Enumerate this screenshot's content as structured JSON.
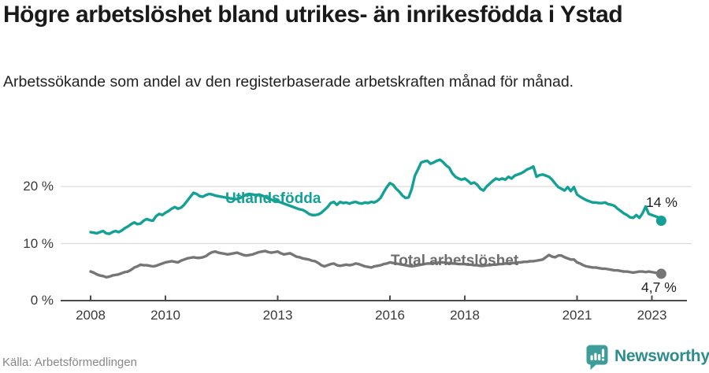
{
  "header": {
    "title": "Högre arbetslöshet bland utrikes- än inrikesfödda i Ystad",
    "subtitle": "Arbetssökande som andel av den registerbaserade arbetskraften månad för månad."
  },
  "footer": {
    "source": "Källa: Arbetsförmedlingen",
    "brand": "Newsworthy"
  },
  "chart_data": {
    "type": "line",
    "title": "Högre arbetslöshet bland utrikes- än inrikesfödda i Ystad",
    "subtitle": "Arbetssökande som andel av den registerbaserade arbetskraften månad för månad.",
    "x_start": 2008,
    "x_step_months": 1,
    "x_end_approx": 2023.25,
    "x_axis": {
      "ticks": [
        2008,
        2010,
        2013,
        2016,
        2018,
        2021,
        2023
      ],
      "tick_labels": [
        "2008",
        "2010",
        "2013",
        "2016",
        "2018",
        "2021",
        "2023"
      ]
    },
    "y_axis": {
      "ticks": [
        0,
        10,
        20
      ],
      "tick_labels": [
        "0 %",
        "10 %",
        "20 %"
      ],
      "range": [
        0,
        26.5
      ],
      "grid": true
    },
    "colors": {
      "grid": "#dcdcdc",
      "axis": "#4a4a4a",
      "accent_teal": "#14a094",
      "line_gray": "#767676"
    },
    "legend_position": "inline-labels",
    "series": [
      {
        "name": "Utlandsfödda",
        "color": "#14a094",
        "end_label": "14 %",
        "end_value": 14,
        "values": [
          12.0,
          11.9,
          11.8,
          12.0,
          12.2,
          11.8,
          11.7,
          12.0,
          12.2,
          12.0,
          12.3,
          12.7,
          13.0,
          13.4,
          13.7,
          13.4,
          13.5,
          14.0,
          14.3,
          14.1,
          14.0,
          14.8,
          15.2,
          15.0,
          15.4,
          15.7,
          16.1,
          16.4,
          16.1,
          16.3,
          16.8,
          17.5,
          18.2,
          18.9,
          18.7,
          18.3,
          18.2,
          18.5,
          18.7,
          18.6,
          18.4,
          18.3,
          18.2,
          18.1,
          18.0,
          17.9,
          17.8,
          17.8,
          18.0,
          18.3,
          18.6,
          18.7,
          18.6,
          18.5,
          18.6,
          18.4,
          18.2,
          17.9,
          17.7,
          17.5,
          17.4,
          17.2,
          17.0,
          16.8,
          16.6,
          16.4,
          16.2,
          16.0,
          15.9,
          15.6,
          15.2,
          15.0,
          15.0,
          15.1,
          15.4,
          15.9,
          16.4,
          17.1,
          17.3,
          16.8,
          17.3,
          17.1,
          17.2,
          17.0,
          17.2,
          17.3,
          17.1,
          17.0,
          17.2,
          17.1,
          17.3,
          17.2,
          17.5,
          18.0,
          19.0,
          19.9,
          20.6,
          20.3,
          19.6,
          19.1,
          18.4,
          18.0,
          18.1,
          19.6,
          21.9,
          23.0,
          24.2,
          24.4,
          24.5,
          24.0,
          24.2,
          24.5,
          24.7,
          24.3,
          23.7,
          23.3,
          22.3,
          21.7,
          21.4,
          21.2,
          21.4,
          21.0,
          20.5,
          20.7,
          20.3,
          19.6,
          19.3,
          20.0,
          20.5,
          21.0,
          21.4,
          21.2,
          21.4,
          21.2,
          21.7,
          21.4,
          21.9,
          22.1,
          22.3,
          22.6,
          23.0,
          23.2,
          23.5,
          21.7,
          22.0,
          22.1,
          21.9,
          21.7,
          21.2,
          20.5,
          19.9,
          19.6,
          19.3,
          19.9,
          19.2,
          19.9,
          18.6,
          18.2,
          17.9,
          17.6,
          17.4,
          17.2,
          17.2,
          17.1,
          17.1,
          17.2,
          16.9,
          16.8,
          16.6,
          16.1,
          15.7,
          15.3,
          15.0,
          14.6,
          14.5,
          15.0,
          14.5,
          15.3,
          16.5,
          15.2,
          15.0,
          14.8,
          14.6,
          14.0
        ]
      },
      {
        "name": "Total arbetslöshet",
        "color": "#767676",
        "end_label": "4,7 %",
        "end_value": 4.7,
        "values": [
          5.1,
          4.9,
          4.6,
          4.4,
          4.3,
          4.1,
          4.2,
          4.4,
          4.5,
          4.6,
          4.8,
          5.0,
          5.1,
          5.4,
          5.8,
          6.0,
          6.3,
          6.2,
          6.2,
          6.1,
          6.0,
          6.1,
          6.3,
          6.5,
          6.7,
          6.8,
          6.9,
          6.8,
          6.7,
          7.0,
          7.2,
          7.4,
          7.5,
          7.6,
          7.5,
          7.5,
          7.6,
          7.8,
          8.2,
          8.5,
          8.6,
          8.4,
          8.3,
          8.2,
          8.1,
          8.2,
          8.3,
          8.4,
          8.2,
          8.0,
          7.9,
          8.0,
          8.1,
          8.3,
          8.5,
          8.6,
          8.7,
          8.5,
          8.4,
          8.5,
          8.6,
          8.3,
          8.1,
          8.2,
          8.3,
          8.0,
          7.7,
          7.6,
          7.4,
          7.3,
          7.2,
          7.0,
          6.9,
          6.6,
          6.2,
          6.0,
          6.2,
          6.4,
          6.5,
          6.2,
          6.1,
          6.2,
          6.3,
          6.2,
          6.3,
          6.5,
          6.4,
          6.2,
          6.0,
          5.9,
          5.8,
          6.0,
          6.1,
          6.2,
          6.4,
          6.5,
          6.7,
          6.6,
          6.5,
          6.4,
          6.3,
          6.2,
          6.1,
          6.0,
          6.1,
          6.2,
          6.3,
          6.4,
          6.5,
          6.5,
          6.6,
          6.6,
          6.7,
          6.7,
          6.6,
          6.6,
          6.5,
          6.5,
          6.4,
          6.4,
          6.4,
          6.3,
          6.3,
          6.2,
          6.2,
          6.1,
          6.1,
          6.2,
          6.2,
          6.3,
          6.3,
          6.4,
          6.4,
          6.5,
          6.5,
          6.6,
          6.6,
          6.7,
          6.7,
          6.8,
          6.8,
          6.9,
          6.9,
          7.0,
          7.1,
          7.2,
          7.6,
          8.0,
          7.7,
          7.6,
          7.9,
          7.9,
          7.6,
          7.4,
          7.2,
          7.2,
          6.7,
          6.5,
          6.2,
          6.0,
          5.9,
          5.8,
          5.8,
          5.7,
          5.6,
          5.6,
          5.5,
          5.4,
          5.3,
          5.3,
          5.2,
          5.1,
          5.1,
          5.0,
          4.9,
          5.0,
          5.1,
          5.1,
          5.0,
          5.1,
          5.0,
          4.9,
          4.8,
          4.7
        ]
      }
    ]
  }
}
